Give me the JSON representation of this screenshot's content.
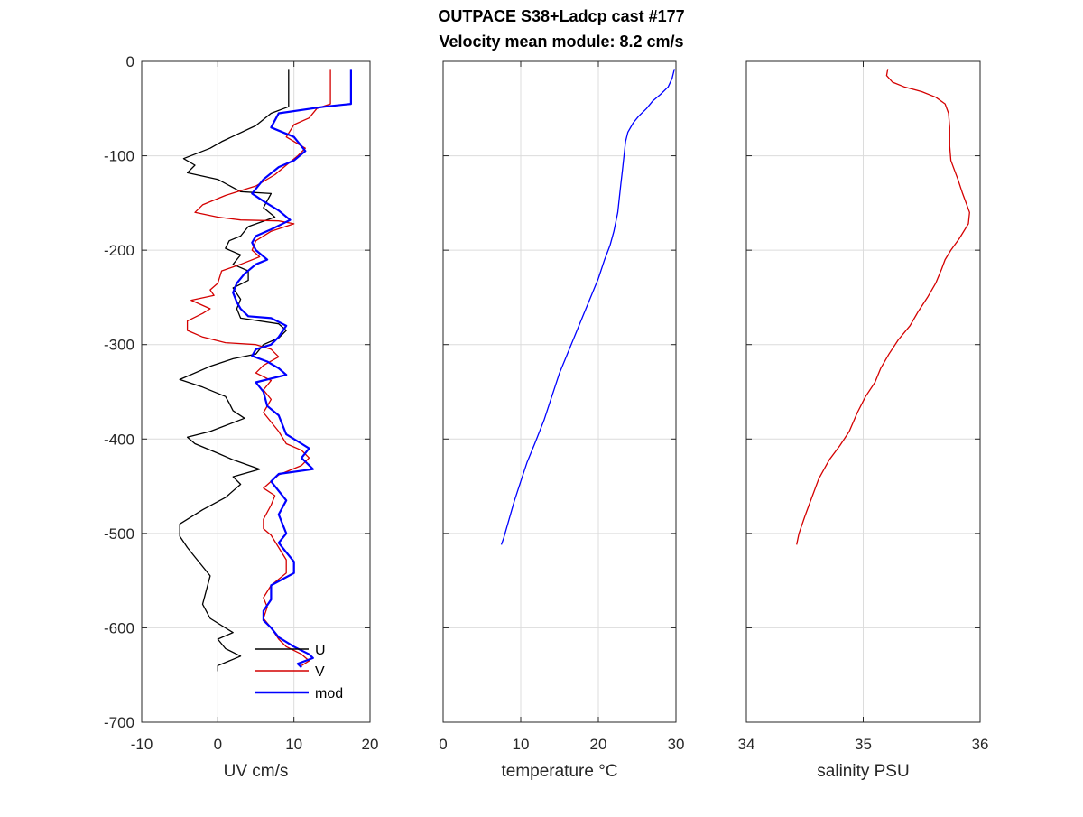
{
  "title_line1": "OUTPACE S38+Ladcp cast #177",
  "title_line2": "Velocity mean module:  8.2 cm/s",
  "chart_data": [
    {
      "type": "line",
      "xlabel": "UV cm/s",
      "xlim": [
        -10,
        20
      ],
      "ylim": [
        -700,
        0
      ],
      "xticks": [
        -10,
        0,
        10,
        20
      ],
      "yticks": [
        -700,
        -600,
        -500,
        -400,
        -300,
        -200,
        -100,
        0
      ],
      "grid": true,
      "legend_position": "bottom-right",
      "series": [
        {
          "name": "U",
          "color": "#000000",
          "points": [
            [
              9.3,
              -8
            ],
            [
              9.3,
              -48
            ],
            [
              7,
              -55
            ],
            [
              5,
              -68
            ],
            [
              0.5,
              -85
            ],
            [
              -1,
              -92
            ],
            [
              -4.5,
              -103
            ],
            [
              -3,
              -110
            ],
            [
              -4,
              -118
            ],
            [
              0,
              -125
            ],
            [
              3,
              -138
            ],
            [
              7,
              -140
            ],
            [
              6,
              -155
            ],
            [
              7.5,
              -165
            ],
            [
              4,
              -175
            ],
            [
              3,
              -185
            ],
            [
              1.5,
              -190
            ],
            [
              1,
              -198
            ],
            [
              3,
              -205
            ],
            [
              2,
              -215
            ],
            [
              4,
              -222
            ],
            [
              4,
              -232
            ],
            [
              2,
              -240
            ],
            [
              3,
              -252
            ],
            [
              2.5,
              -262
            ],
            [
              3,
              -272
            ],
            [
              8,
              -278
            ],
            [
              9,
              -285
            ],
            [
              8,
              -293
            ],
            [
              6,
              -300
            ],
            [
              5,
              -310
            ],
            [
              2,
              -315
            ],
            [
              -1,
              -323
            ],
            [
              -5,
              -337
            ],
            [
              -2,
              -345
            ],
            [
              1,
              -355
            ],
            [
              1.5,
              -362
            ],
            [
              2,
              -370
            ],
            [
              3.5,
              -378
            ],
            [
              -1,
              -392
            ],
            [
              -4,
              -398
            ],
            [
              -3,
              -405
            ],
            [
              0,
              -415
            ],
            [
              2,
              -422
            ],
            [
              5.5,
              -432
            ],
            [
              2,
              -440
            ],
            [
              3,
              -448
            ],
            [
              1,
              -462
            ],
            [
              -2,
              -475
            ],
            [
              -5,
              -490
            ],
            [
              -5,
              -503
            ],
            [
              -4,
              -515
            ],
            [
              -3,
              -525
            ],
            [
              -2,
              -535
            ],
            [
              -1,
              -545
            ],
            [
              -1.5,
              -560
            ],
            [
              -2,
              -575
            ],
            [
              -1,
              -590
            ],
            [
              2,
              -605
            ],
            [
              0,
              -612
            ],
            [
              1,
              -622
            ],
            [
              3,
              -630
            ],
            [
              0,
              -640
            ],
            [
              0,
              -646
            ]
          ]
        },
        {
          "name": "V",
          "color": "#d40000",
          "points": [
            [
              14.8,
              -8
            ],
            [
              14.8,
              -45
            ],
            [
              13,
              -50
            ],
            [
              12,
              -60
            ],
            [
              10,
              -67
            ],
            [
              9,
              -80
            ],
            [
              11.5,
              -92
            ],
            [
              10.5,
              -100
            ],
            [
              9,
              -110
            ],
            [
              7.5,
              -120
            ],
            [
              5,
              -132
            ],
            [
              1,
              -142
            ],
            [
              -2,
              -152
            ],
            [
              -3,
              -160
            ],
            [
              0,
              -165
            ],
            [
              3,
              -168
            ],
            [
              8,
              -169
            ],
            [
              10,
              -172
            ],
            [
              7,
              -180
            ],
            [
              5,
              -190
            ],
            [
              4.5,
              -200
            ],
            [
              5.5,
              -207
            ],
            [
              3,
              -215
            ],
            [
              0.5,
              -222
            ],
            [
              0,
              -235
            ],
            [
              -1,
              -242
            ],
            [
              -0.5,
              -248
            ],
            [
              -3.5,
              -253
            ],
            [
              -1,
              -262
            ],
            [
              -2,
              -267
            ],
            [
              -4,
              -275
            ],
            [
              -4,
              -285
            ],
            [
              -2,
              -292
            ],
            [
              1,
              -298
            ],
            [
              5,
              -300
            ],
            [
              7,
              -305
            ],
            [
              8,
              -313
            ],
            [
              6,
              -322
            ],
            [
              5,
              -330
            ],
            [
              7,
              -338
            ],
            [
              6,
              -348
            ],
            [
              7,
              -358
            ],
            [
              6,
              -372
            ],
            [
              7,
              -382
            ],
            [
              8,
              -392
            ],
            [
              9,
              -405
            ],
            [
              11,
              -412
            ],
            [
              12,
              -420
            ],
            [
              11,
              -428
            ],
            [
              8,
              -438
            ],
            [
              7,
              -445
            ],
            [
              6,
              -452
            ],
            [
              7.5,
              -460
            ],
            [
              7,
              -470
            ],
            [
              6,
              -485
            ],
            [
              6,
              -495
            ],
            [
              7,
              -502
            ],
            [
              8,
              -515
            ],
            [
              9,
              -528
            ],
            [
              9,
              -542
            ],
            [
              7,
              -555
            ],
            [
              6,
              -568
            ],
            [
              6.5,
              -578
            ],
            [
              6,
              -590
            ],
            [
              7,
              -600
            ],
            [
              8,
              -612
            ],
            [
              9,
              -620
            ],
            [
              11,
              -628
            ],
            [
              12,
              -635
            ],
            [
              11,
              -640
            ]
          ]
        },
        {
          "name": "mod",
          "color": "#0000ff",
          "points": [
            [
              17.5,
              -8
            ],
            [
              17.5,
              -45
            ],
            [
              14,
              -48
            ],
            [
              8,
              -55
            ],
            [
              7,
              -70
            ],
            [
              10,
              -80
            ],
            [
              11,
              -90
            ],
            [
              11.5,
              -95
            ],
            [
              10,
              -105
            ],
            [
              8,
              -112
            ],
            [
              6,
              -125
            ],
            [
              5,
              -135
            ],
            [
              4.5,
              -140
            ],
            [
              6,
              -148
            ],
            [
              8,
              -158
            ],
            [
              9.5,
              -168
            ],
            [
              7,
              -178
            ],
            [
              5,
              -185
            ],
            [
              4.5,
              -192
            ],
            [
              5,
              -200
            ],
            [
              6.5,
              -210
            ],
            [
              5,
              -215
            ],
            [
              3.5,
              -225
            ],
            [
              2.5,
              -235
            ],
            [
              2,
              -245
            ],
            [
              2.5,
              -255
            ],
            [
              3,
              -262
            ],
            [
              4,
              -270
            ],
            [
              7,
              -272
            ],
            [
              9,
              -280
            ],
            [
              8,
              -292
            ],
            [
              7,
              -300
            ],
            [
              5,
              -305
            ],
            [
              4.5,
              -312
            ],
            [
              6.5,
              -318
            ],
            [
              8,
              -325
            ],
            [
              9,
              -332
            ],
            [
              5,
              -340
            ],
            [
              6,
              -350
            ],
            [
              6.5,
              -365
            ],
            [
              8,
              -375
            ],
            [
              8.5,
              -385
            ],
            [
              9,
              -395
            ],
            [
              11,
              -405
            ],
            [
              12,
              -410
            ],
            [
              11,
              -420
            ],
            [
              12.5,
              -432
            ],
            [
              8,
              -437
            ],
            [
              7,
              -445
            ],
            [
              8,
              -455
            ],
            [
              9,
              -465
            ],
            [
              8,
              -480
            ],
            [
              9,
              -500
            ],
            [
              8,
              -510
            ],
            [
              9,
              -520
            ],
            [
              10,
              -530
            ],
            [
              10,
              -542
            ],
            [
              7,
              -555
            ],
            [
              7,
              -570
            ],
            [
              6,
              -582
            ],
            [
              6,
              -592
            ],
            [
              7,
              -600
            ],
            [
              8,
              -610
            ],
            [
              10,
              -620
            ],
            [
              12,
              -628
            ],
            [
              12.5,
              -632
            ],
            [
              10.5,
              -638
            ],
            [
              11,
              -642
            ]
          ]
        }
      ]
    },
    {
      "type": "line",
      "xlabel": "temperature °C",
      "xlim": [
        0,
        30
      ],
      "ylim": [
        -700,
        0
      ],
      "xticks": [
        0,
        10,
        20,
        30
      ],
      "grid": true,
      "series": [
        {
          "name": "",
          "color": "#0000ff",
          "points": [
            [
              29.8,
              -8
            ],
            [
              29.5,
              -18
            ],
            [
              29,
              -27
            ],
            [
              28,
              -35
            ],
            [
              27,
              -42
            ],
            [
              26.2,
              -50
            ],
            [
              25.2,
              -58
            ],
            [
              24.5,
              -65
            ],
            [
              23.8,
              -75
            ],
            [
              23.5,
              -85
            ],
            [
              23.3,
              -100
            ],
            [
              23.1,
              -115
            ],
            [
              22.9,
              -130
            ],
            [
              22.7,
              -145
            ],
            [
              22.5,
              -160
            ],
            [
              22,
              -180
            ],
            [
              21.5,
              -195
            ],
            [
              20.8,
              -210
            ],
            [
              20,
              -230
            ],
            [
              19,
              -250
            ],
            [
              18,
              -270
            ],
            [
              17,
              -290
            ],
            [
              16,
              -310
            ],
            [
              15,
              -330
            ],
            [
              14,
              -355
            ],
            [
              13,
              -380
            ],
            [
              11.8,
              -405
            ],
            [
              10.8,
              -425
            ],
            [
              10,
              -445
            ],
            [
              9.2,
              -465
            ],
            [
              8.5,
              -485
            ],
            [
              7.8,
              -505
            ],
            [
              7.5,
              -512
            ]
          ]
        }
      ]
    },
    {
      "type": "line",
      "xlabel": "salinity PSU",
      "xlim": [
        34,
        36
      ],
      "ylim": [
        -700,
        0
      ],
      "xticks": [
        34,
        35,
        36
      ],
      "grid": true,
      "series": [
        {
          "name": "",
          "color": "#d40000",
          "points": [
            [
              35.21,
              -8
            ],
            [
              35.2,
              -15
            ],
            [
              35.25,
              -22
            ],
            [
              35.35,
              -27
            ],
            [
              35.5,
              -32
            ],
            [
              35.62,
              -38
            ],
            [
              35.7,
              -45
            ],
            [
              35.73,
              -55
            ],
            [
              35.74,
              -70
            ],
            [
              35.74,
              -90
            ],
            [
              35.75,
              -105
            ],
            [
              35.78,
              -115
            ],
            [
              35.81,
              -125
            ],
            [
              35.85,
              -140
            ],
            [
              35.88,
              -150
            ],
            [
              35.91,
              -160
            ],
            [
              35.9,
              -172
            ],
            [
              35.82,
              -188
            ],
            [
              35.75,
              -200
            ],
            [
              35.7,
              -210
            ],
            [
              35.67,
              -220
            ],
            [
              35.62,
              -235
            ],
            [
              35.55,
              -250
            ],
            [
              35.47,
              -265
            ],
            [
              35.4,
              -280
            ],
            [
              35.3,
              -295
            ],
            [
              35.22,
              -310
            ],
            [
              35.15,
              -325
            ],
            [
              35.1,
              -340
            ],
            [
              35.02,
              -355
            ],
            [
              34.95,
              -372
            ],
            [
              34.88,
              -392
            ],
            [
              34.8,
              -407
            ],
            [
              34.71,
              -422
            ],
            [
              34.62,
              -442
            ],
            [
              34.56,
              -462
            ],
            [
              34.5,
              -482
            ],
            [
              34.45,
              -500
            ],
            [
              34.43,
              -512
            ]
          ]
        }
      ]
    }
  ]
}
